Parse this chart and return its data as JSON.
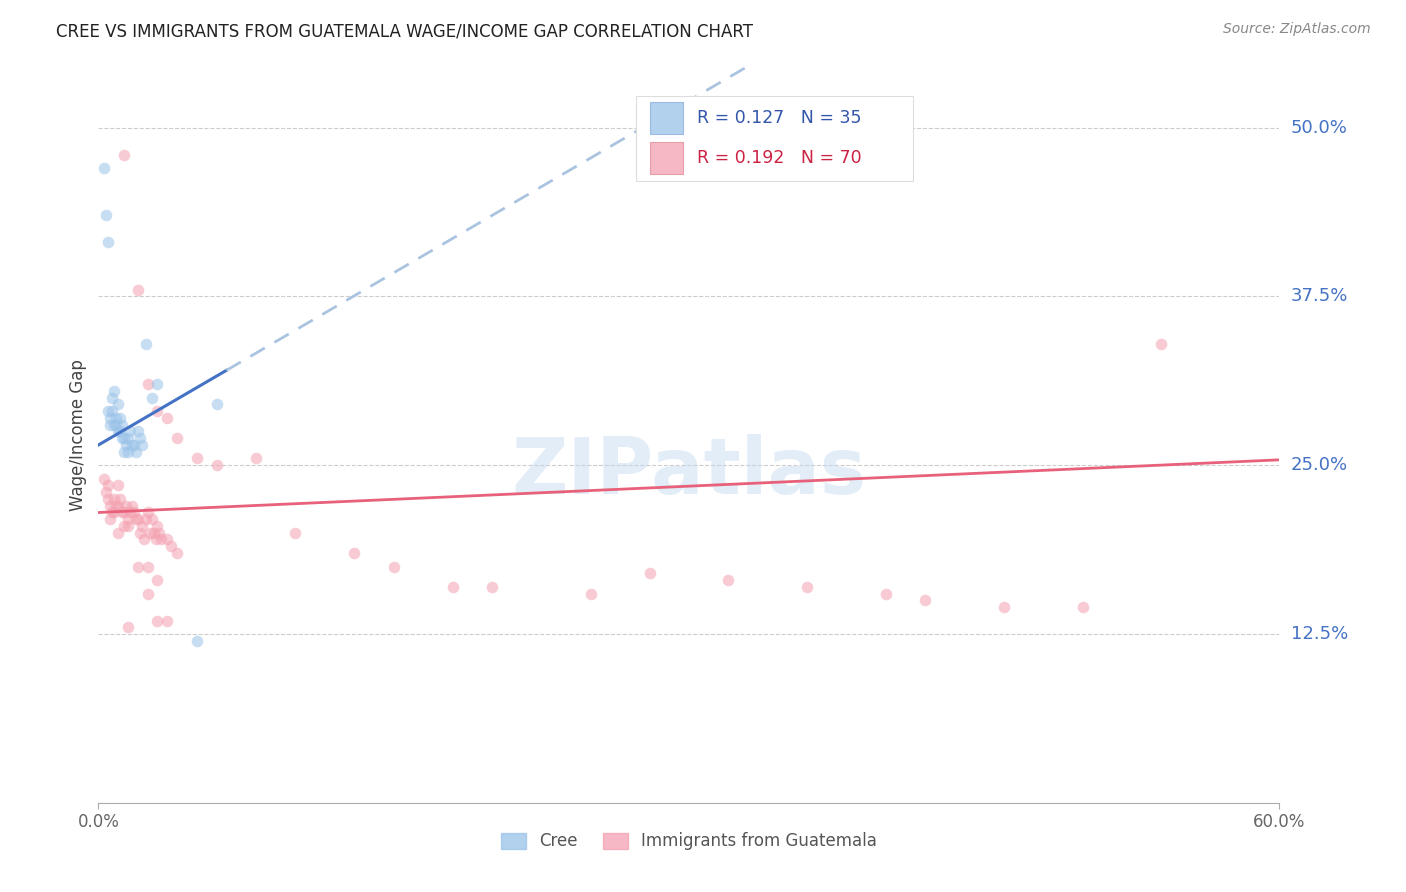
{
  "title": "CREE VS IMMIGRANTS FROM GUATEMALA WAGE/INCOME GAP CORRELATION CHART",
  "source": "Source: ZipAtlas.com",
  "ylabel": "Wage/Income Gap",
  "ytick_labels": [
    "50.0%",
    "37.5%",
    "25.0%",
    "12.5%"
  ],
  "ytick_values": [
    0.5,
    0.375,
    0.25,
    0.125
  ],
  "xlim": [
    0.0,
    0.6
  ],
  "ylim": [
    0.0,
    0.545
  ],
  "background_color": "#ffffff",
  "grid_color": "#cccccc",
  "cree_color": "#99c2e8",
  "guatemala_color": "#f4a0b0",
  "trendline_cree_solid_color": "#4472c4",
  "trendline_cree_dash_color": "#aac4e0",
  "trendline_guatemala_color": "#e8617a",
  "marker_size": 70,
  "marker_alpha": 0.55,
  "watermark": "ZIPatlas",
  "watermark_color": "#c0d8f0",
  "cree_line_xend": 0.065,
  "cree_trend_slope": 0.85,
  "cree_trend_intercept": 0.265,
  "guat_trend_slope": 0.065,
  "guat_trend_intercept": 0.215,
  "cree_x": [
    0.003,
    0.004,
    0.005,
    0.005,
    0.006,
    0.006,
    0.007,
    0.007,
    0.008,
    0.008,
    0.009,
    0.009,
    0.01,
    0.01,
    0.011,
    0.011,
    0.012,
    0.012,
    0.013,
    0.013,
    0.014,
    0.015,
    0.015,
    0.016,
    0.017,
    0.018,
    0.019,
    0.02,
    0.021,
    0.022,
    0.024,
    0.027,
    0.03,
    0.05,
    0.06
  ],
  "cree_y": [
    0.47,
    0.435,
    0.415,
    0.29,
    0.285,
    0.28,
    0.3,
    0.29,
    0.305,
    0.28,
    0.285,
    0.28,
    0.295,
    0.275,
    0.285,
    0.275,
    0.28,
    0.27,
    0.27,
    0.26,
    0.265,
    0.27,
    0.26,
    0.275,
    0.265,
    0.265,
    0.26,
    0.275,
    0.27,
    0.265,
    0.34,
    0.3,
    0.31,
    0.12,
    0.295
  ],
  "guat_x": [
    0.003,
    0.004,
    0.005,
    0.005,
    0.006,
    0.006,
    0.007,
    0.008,
    0.008,
    0.009,
    0.01,
    0.01,
    0.011,
    0.012,
    0.013,
    0.013,
    0.014,
    0.015,
    0.015,
    0.016,
    0.017,
    0.018,
    0.019,
    0.02,
    0.021,
    0.022,
    0.023,
    0.024,
    0.025,
    0.026,
    0.027,
    0.028,
    0.029,
    0.03,
    0.031,
    0.032,
    0.035,
    0.037,
    0.04,
    0.013,
    0.02,
    0.025,
    0.03,
    0.035,
    0.04,
    0.05,
    0.06,
    0.08,
    0.1,
    0.13,
    0.15,
    0.18,
    0.2,
    0.25,
    0.28,
    0.32,
    0.36,
    0.4,
    0.42,
    0.46,
    0.5,
    0.035,
    0.025,
    0.03,
    0.02,
    0.015,
    0.025,
    0.03,
    0.54,
    0.01
  ],
  "guat_y": [
    0.24,
    0.23,
    0.235,
    0.225,
    0.22,
    0.21,
    0.215,
    0.225,
    0.215,
    0.22,
    0.235,
    0.22,
    0.225,
    0.215,
    0.205,
    0.215,
    0.22,
    0.205,
    0.21,
    0.215,
    0.22,
    0.215,
    0.21,
    0.21,
    0.2,
    0.205,
    0.195,
    0.21,
    0.215,
    0.2,
    0.21,
    0.2,
    0.195,
    0.205,
    0.2,
    0.195,
    0.195,
    0.19,
    0.185,
    0.48,
    0.38,
    0.31,
    0.29,
    0.285,
    0.27,
    0.255,
    0.25,
    0.255,
    0.2,
    0.185,
    0.175,
    0.16,
    0.16,
    0.155,
    0.17,
    0.165,
    0.16,
    0.155,
    0.15,
    0.145,
    0.145,
    0.135,
    0.175,
    0.165,
    0.175,
    0.13,
    0.155,
    0.135,
    0.34,
    0.2
  ]
}
